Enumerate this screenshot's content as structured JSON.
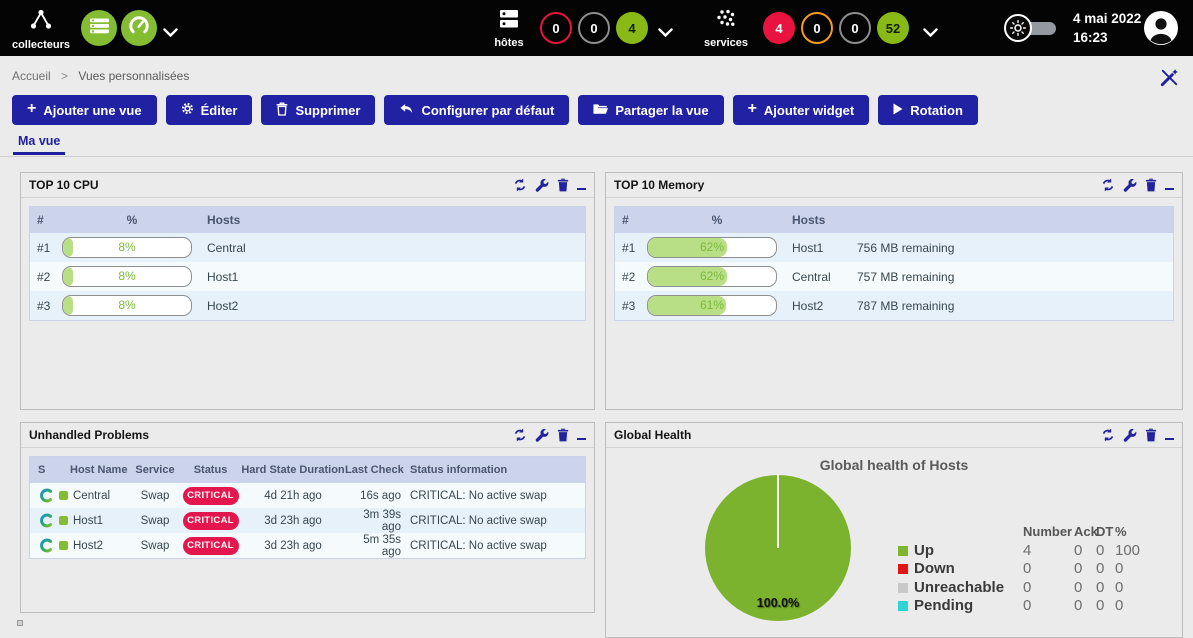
{
  "colors": {
    "accent_navy": "#2121a3",
    "brand_green": "#84bd32",
    "badge_red": "#e8133f",
    "badge_orange": "#f89c1b",
    "badge_gray": "#8d8d8d",
    "badge_green": "#88b917",
    "critical": "#e4164e",
    "bar_fill": "#b9df86",
    "pie_green": "#7cb32e"
  },
  "topbar": {
    "pollers": {
      "label": "collecteurs"
    },
    "hosts": {
      "label": "hôtes",
      "badges": [
        {
          "status": "down",
          "value": "0"
        },
        {
          "status": "unreachable",
          "value": "0"
        },
        {
          "status": "up",
          "value": "4"
        }
      ]
    },
    "services": {
      "label": "services",
      "badges": [
        {
          "status": "critical",
          "value": "4"
        },
        {
          "status": "warning",
          "value": "0"
        },
        {
          "status": "unknown",
          "value": "0"
        },
        {
          "status": "ok",
          "value": "52"
        }
      ]
    },
    "clock": {
      "date": "4 mai 2022",
      "time": "16:23"
    }
  },
  "breadcrumb": {
    "home": "Accueil",
    "separator": ">",
    "current": "Vues personnalisées"
  },
  "toolbar": {
    "add_view": "Ajouter une vue",
    "edit": "Éditer",
    "delete": "Supprimer",
    "set_default": "Configurer par défaut",
    "share": "Partager la vue",
    "add_widget": "Ajouter widget",
    "rotation": "Rotation"
  },
  "tabs": {
    "active": "Ma vue"
  },
  "widgets": {
    "cpu": {
      "title": "TOP 10 CPU",
      "columns": {
        "rank": "#",
        "percent": "%",
        "hosts": "Hosts"
      },
      "rows": [
        {
          "rank": "#1",
          "percent": 8,
          "percent_label": "8%",
          "host": "Central"
        },
        {
          "rank": "#2",
          "percent": 8,
          "percent_label": "8%",
          "host": "Host1"
        },
        {
          "rank": "#3",
          "percent": 8,
          "percent_label": "8%",
          "host": "Host2"
        }
      ]
    },
    "memory": {
      "title": "TOP 10 Memory",
      "columns": {
        "rank": "#",
        "percent": "%",
        "hosts": "Hosts"
      },
      "rows": [
        {
          "rank": "#1",
          "percent": 62,
          "percent_label": "62%",
          "host": "Host1",
          "remaining": "756 MB remaining"
        },
        {
          "rank": "#2",
          "percent": 62,
          "percent_label": "62%",
          "host": "Central",
          "remaining": "757 MB remaining"
        },
        {
          "rank": "#3",
          "percent": 61,
          "percent_label": "61%",
          "host": "Host2",
          "remaining": "787 MB remaining"
        }
      ]
    },
    "problems": {
      "title": "Unhandled Problems",
      "columns": {
        "s": "S",
        "host": "Host Name",
        "service": "Service",
        "status": "Status",
        "duration": "Hard State Duration",
        "last_check": "Last Check",
        "info": "Status information"
      },
      "rows": [
        {
          "host": "Central",
          "service": "Swap",
          "status": "CRITICAL",
          "duration": "4d 21h ago",
          "last_check": "16s ago",
          "info": "CRITICAL: No active swap"
        },
        {
          "host": "Host1",
          "service": "Swap",
          "status": "CRITICAL",
          "duration": "3d 23h ago",
          "last_check": "3m 39s ago",
          "info": "CRITICAL: No active swap"
        },
        {
          "host": "Host2",
          "service": "Swap",
          "status": "CRITICAL",
          "duration": "3d 23h ago",
          "last_check": "5m 35s ago",
          "info": "CRITICAL: No active swap"
        }
      ]
    },
    "health": {
      "title": "Global Health",
      "chart_data": {
        "type": "pie",
        "title": "Global health of Hosts",
        "slices": [
          {
            "label": "Up",
            "value": 100.0,
            "color": "#7cb32e"
          },
          {
            "label": "Down",
            "value": 0,
            "color": "#e01616"
          },
          {
            "label": "Unreachable",
            "value": 0,
            "color": "#c9c9c9"
          },
          {
            "label": "Pending",
            "value": 0,
            "color": "#2ed3d3"
          }
        ],
        "center_label": "100.0%",
        "legend_position": "right"
      },
      "legend": {
        "headers": {
          "number": "Number",
          "ack": "Ack",
          "dt": "DT",
          "pct": "%"
        },
        "rows": [
          {
            "label": "Up",
            "color": "#7db52f",
            "number": "4",
            "ack": "0",
            "dt": "0",
            "pct": "100"
          },
          {
            "label": "Down",
            "color": "#e01616",
            "number": "0",
            "ack": "0",
            "dt": "0",
            "pct": "0"
          },
          {
            "label": "Unreachable",
            "color": "#c9c9c9",
            "number": "0",
            "ack": "0",
            "dt": "0",
            "pct": "0"
          },
          {
            "label": "Pending",
            "color": "#2ed3d3",
            "number": "0",
            "ack": "0",
            "dt": "0",
            "pct": "0"
          }
        ]
      }
    }
  }
}
